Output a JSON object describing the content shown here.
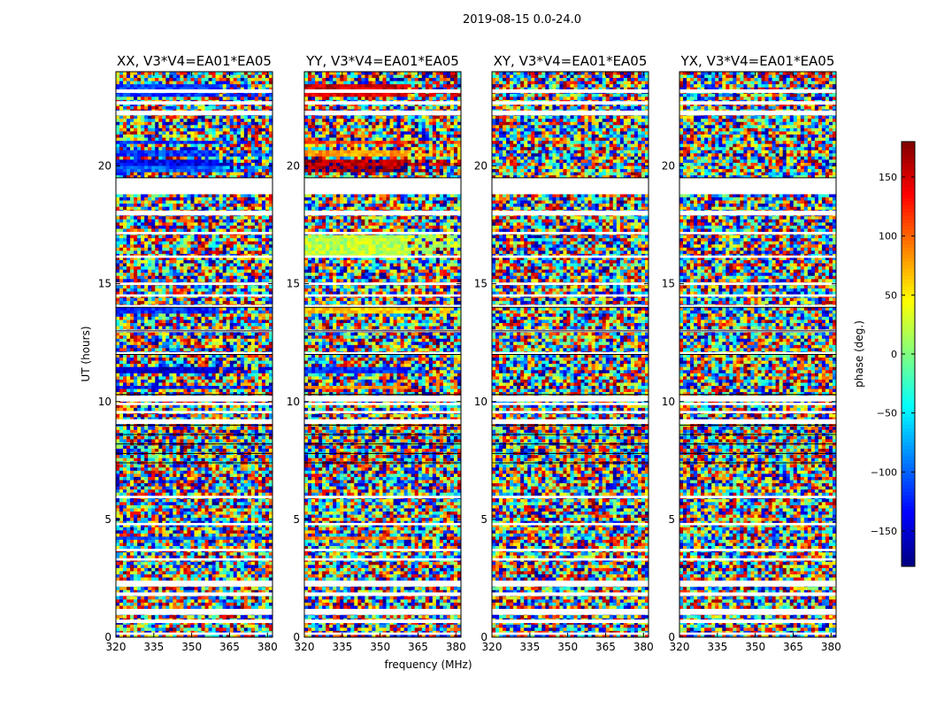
{
  "chart_data": {
    "type": "heatmap",
    "suptitle": "2019-08-15 0.0-24.0",
    "xlabel": "frequency (MHz)",
    "ylabel": "UT (hours)",
    "xlim": [
      320,
      382
    ],
    "ylim": [
      0,
      24
    ],
    "xticks": [
      320,
      335,
      350,
      365,
      380
    ],
    "yticks": [
      0,
      5,
      10,
      15,
      20
    ],
    "panels": [
      {
        "title": "XX, V3*V4=EA01*EA05",
        "pol": "XX"
      },
      {
        "title": "YY, V3*V4=EA01*EA05",
        "pol": "YY"
      },
      {
        "title": "XY, V3*V4=EA01*EA05",
        "pol": "XY"
      },
      {
        "title": "YX, V3*V4=EA01*EA05",
        "pol": "YX"
      }
    ],
    "colorbar": {
      "label": "phase (deg.)",
      "range": [
        -180,
        180
      ],
      "ticks": [
        150,
        100,
        50,
        0,
        -50,
        -100,
        -150
      ],
      "tick_labels": [
        "150",
        "100",
        "50",
        "0",
        "−50",
        "−100",
        "−150"
      ]
    },
    "flagged_gaps_ut": [
      [
        19.5,
        18.8
      ],
      [
        18.1,
        17.9
      ],
      [
        17.2,
        17.1
      ],
      [
        16.2,
        16.1
      ],
      [
        15.05,
        14.95
      ],
      [
        14.55,
        14.45
      ],
      [
        14.1,
        14.0
      ],
      [
        13.05,
        12.95
      ],
      [
        12.1,
        12.0
      ],
      [
        10.25,
        10.0
      ],
      [
        9.95,
        9.85
      ],
      [
        9.6,
        9.5
      ],
      [
        9.25,
        9.05
      ],
      [
        6.0,
        5.9
      ],
      [
        4.85,
        4.75
      ],
      [
        3.75,
        3.65
      ],
      [
        3.35,
        3.25
      ],
      [
        2.4,
        2.15
      ],
      [
        1.9,
        1.75
      ],
      [
        1.2,
        0.95
      ],
      [
        0.75,
        0.6
      ],
      [
        0.2,
        0.1
      ],
      [
        22.35,
        22.15
      ],
      [
        23.25,
        23.1
      ],
      [
        22.75,
        22.6
      ]
    ],
    "coherent_signal_rows_ut": {
      "XX": [
        [
          23.0,
          23.4,
          -115
        ],
        [
          20.9,
          21.1,
          -120
        ],
        [
          20.4,
          20.7,
          -110
        ],
        [
          20.0,
          20.2,
          -140
        ],
        [
          19.8,
          20.0,
          -100
        ],
        [
          13.8,
          14.0,
          -120
        ],
        [
          11.2,
          11.4,
          -150
        ],
        [
          10.5,
          10.7,
          -130
        ],
        [
          4.1,
          4.3,
          -100
        ]
      ],
      "YY": [
        [
          23.0,
          23.4,
          150
        ],
        [
          20.9,
          21.1,
          120
        ],
        [
          20.4,
          20.7,
          80
        ],
        [
          20.0,
          20.2,
          160
        ],
        [
          19.8,
          20.0,
          170
        ],
        [
          16.2,
          17.0,
          20
        ],
        [
          13.8,
          14.0,
          60
        ],
        [
          11.2,
          11.4,
          -120
        ],
        [
          10.5,
          10.7,
          80
        ],
        [
          4.1,
          4.3,
          90
        ]
      ]
    }
  }
}
